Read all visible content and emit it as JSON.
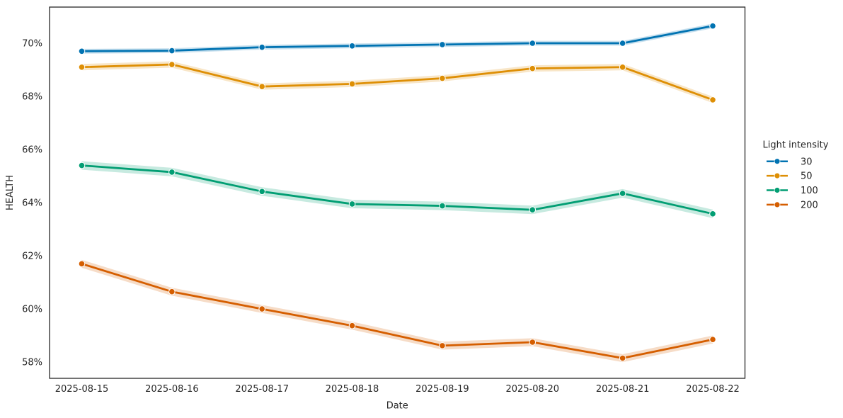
{
  "chart_data": {
    "type": "line",
    "title": "",
    "xlabel": "Date",
    "ylabel": "HEALTH",
    "legend_title": "Light intensity",
    "legend_position": "right-outside",
    "grid": false,
    "categories": [
      "2025-08-15",
      "2025-08-16",
      "2025-08-17",
      "2025-08-18",
      "2025-08-19",
      "2025-08-20",
      "2025-08-21",
      "2025-08-22"
    ],
    "yticks": [
      58,
      60,
      62,
      64,
      66,
      68,
      70
    ],
    "ytick_labels": [
      "58%",
      "60%",
      "62%",
      "64%",
      "66%",
      "68%",
      "70%"
    ],
    "ylim": [
      57.39,
      71.36
    ],
    "axis_color": "#262626",
    "text_color": "#262626",
    "background_color": "#ffffff",
    "series": [
      {
        "name": "30",
        "color": "#0173b2",
        "values": [
          69.7,
          69.72,
          69.85,
          69.9,
          69.95,
          70.0,
          70.0,
          70.65
        ],
        "band": 0.09
      },
      {
        "name": "50",
        "color": "#de8f05",
        "values": [
          69.1,
          69.2,
          68.37,
          68.47,
          68.68,
          69.05,
          69.1,
          67.87
        ],
        "band": 0.12
      },
      {
        "name": "100",
        "color": "#029e73",
        "values": [
          65.4,
          65.15,
          64.42,
          63.95,
          63.88,
          63.73,
          64.35,
          63.58
        ],
        "band": 0.16
      },
      {
        "name": "200",
        "color": "#d55e00",
        "values": [
          61.7,
          60.65,
          60.0,
          59.37,
          58.62,
          58.75,
          58.15,
          58.85
        ],
        "band": 0.15
      }
    ]
  }
}
